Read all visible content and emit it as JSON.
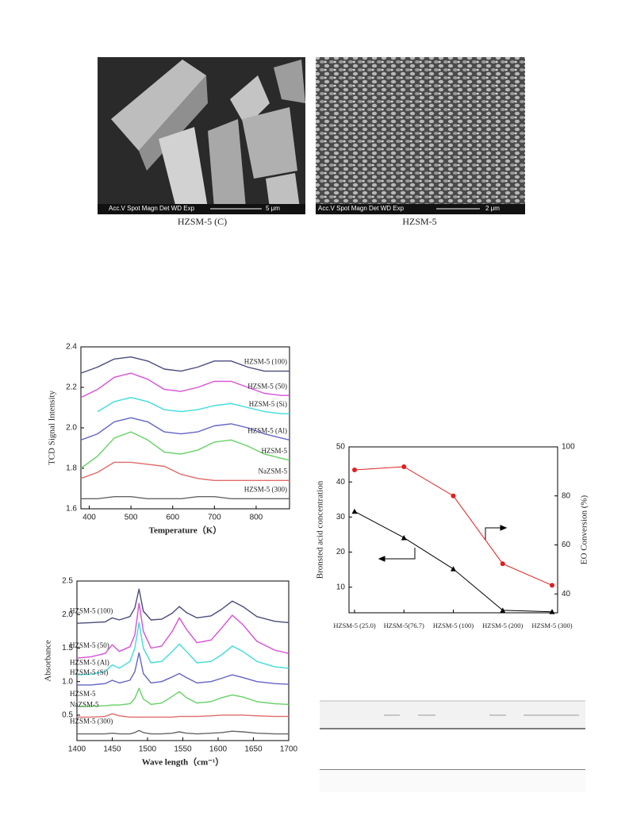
{
  "figures": [
    {
      "caption": "HZSM-5 (C)",
      "info": "Acc.V  Spot Magn   Det  WD  Exp",
      "scale": "5 μm"
    },
    {
      "caption": "HZSM-5",
      "info": "Acc.V  Spot Magn   Det  WD  Exp",
      "scale": "2 μm"
    }
  ],
  "chart_data": [
    {
      "type": "line",
      "xlabel": "Temperature（K）",
      "ylabel": "TCD Signal Intensity",
      "x": [
        380,
        420,
        460,
        500,
        540,
        580,
        620,
        660,
        700,
        740,
        780,
        820,
        860,
        880
      ],
      "xlim": [
        380,
        880
      ],
      "xticks": [
        400,
        500,
        600,
        700,
        800
      ],
      "ylim": [
        1.6,
        2.4
      ],
      "yticks": [
        1.6,
        1.8,
        {
          "value": 2,
          "label": "2.0"
        },
        2.2,
        2.4
      ],
      "series": [
        {
          "name": "HZSM-5 (100)",
          "color": "#4b4b7d",
          "values": [
            2.27,
            2.3,
            2.34,
            2.35,
            2.33,
            2.29,
            2.28,
            2.3,
            2.33,
            2.33,
            2.3,
            2.28,
            2.28,
            2.28
          ]
        },
        {
          "name": "HZSM-5 (50)",
          "color": "#d94fd9",
          "values": [
            2.15,
            2.19,
            2.25,
            2.27,
            2.24,
            2.19,
            2.18,
            2.2,
            2.23,
            2.23,
            2.2,
            2.17,
            2.16,
            2.16
          ]
        },
        {
          "name": "HZSM-5 (Si)",
          "color": "#3fdcdc",
          "values": [
            null,
            2.08,
            2.13,
            2.15,
            2.13,
            2.09,
            2.08,
            2.09,
            2.11,
            2.12,
            2.1,
            2.08,
            2.07,
            2.07
          ]
        },
        {
          "name": "HZSM-5 (Al)",
          "color": "#6464c8",
          "values": [
            1.94,
            1.97,
            2.03,
            2.05,
            2.03,
            1.98,
            1.97,
            1.98,
            2.01,
            2.02,
            2.0,
            1.97,
            1.95,
            1.94
          ]
        },
        {
          "name": "HZSM-5",
          "color": "#66d166",
          "values": [
            1.8,
            1.86,
            1.95,
            1.98,
            1.94,
            1.88,
            1.87,
            1.89,
            1.93,
            1.94,
            1.91,
            1.87,
            1.85,
            1.84
          ]
        },
        {
          "name": "NaZSM-5",
          "color": "#e06a6a",
          "values": [
            1.75,
            1.78,
            1.83,
            1.83,
            1.82,
            1.81,
            1.77,
            1.75,
            1.74,
            1.74,
            1.74,
            1.74,
            1.74,
            1.74
          ]
        },
        {
          "name": "HZSM-5 (300)",
          "color": "#666666",
          "values": [
            1.65,
            1.65,
            1.66,
            1.66,
            1.65,
            1.65,
            1.65,
            1.66,
            1.66,
            1.65,
            1.65,
            1.65,
            1.65,
            1.65
          ]
        }
      ]
    },
    {
      "type": "line",
      "xlabel": "Wave length（cm⁻¹）",
      "ylabel": "Absorbance",
      "x": [
        1400,
        1420,
        1440,
        1450,
        1460,
        1475,
        1482,
        1488,
        1494,
        1505,
        1520,
        1535,
        1545,
        1555,
        1570,
        1590,
        1605,
        1620,
        1635,
        1655,
        1680,
        1700
      ],
      "xlim": [
        1400,
        1700
      ],
      "xticks": [
        1400,
        1450,
        1500,
        1550,
        1600,
        1650,
        1700
      ],
      "ylim": [
        0.12,
        2.5
      ],
      "yticks": [
        0.5,
        {
          "value": 1,
          "label": "1.0"
        },
        1.5,
        {
          "value": 2,
          "label": "2.0"
        },
        2.5
      ],
      "series": [
        {
          "name": "HZSM-5 (100)",
          "color": "#4b4b7d",
          "values": [
            1.87,
            1.88,
            1.89,
            1.95,
            1.92,
            1.97,
            2.1,
            2.38,
            2.05,
            1.92,
            1.93,
            2.02,
            2.12,
            2.03,
            1.95,
            1.98,
            2.08,
            2.2,
            2.12,
            1.97,
            1.9,
            1.88
          ]
        },
        {
          "name": "HZSM-5 (50)",
          "color": "#d94fd9",
          "values": [
            1.35,
            1.37,
            1.42,
            1.55,
            1.45,
            1.52,
            1.7,
            2.17,
            1.75,
            1.5,
            1.53,
            1.75,
            1.95,
            1.78,
            1.58,
            1.62,
            1.8,
            1.99,
            1.85,
            1.6,
            1.47,
            1.42
          ]
        },
        {
          "name": "HZSM-5 (Al)",
          "color": "#3fdcdc",
          "values": [
            1.1,
            1.11,
            1.15,
            1.25,
            1.2,
            1.3,
            1.5,
            1.88,
            1.5,
            1.28,
            1.3,
            1.45,
            1.56,
            1.45,
            1.28,
            1.3,
            1.4,
            1.53,
            1.45,
            1.3,
            1.22,
            1.2
          ]
        },
        {
          "name": "HZSM-5 (Si)",
          "color": "#6464c8",
          "values": [
            0.95,
            0.95,
            0.97,
            1.02,
            0.98,
            1.02,
            1.15,
            1.43,
            1.12,
            0.98,
            1.0,
            1.07,
            1.12,
            1.06,
            0.98,
            1.0,
            1.05,
            1.1,
            1.06,
            1.0,
            0.97,
            0.96
          ]
        },
        {
          "name": "HZSM-5",
          "color": "#66d166",
          "values": [
            0.63,
            0.63,
            0.64,
            0.65,
            0.65,
            0.67,
            0.75,
            0.9,
            0.74,
            0.66,
            0.68,
            0.78,
            0.85,
            0.76,
            0.68,
            0.7,
            0.76,
            0.8,
            0.77,
            0.7,
            0.67,
            0.66
          ]
        },
        {
          "name": "NaZSM-5",
          "color": "#e06a6a",
          "values": [
            0.47,
            0.47,
            0.48,
            0.52,
            0.49,
            0.47,
            0.47,
            0.47,
            0.47,
            0.47,
            0.47,
            0.47,
            0.48,
            0.48,
            0.48,
            0.49,
            0.5,
            0.5,
            0.5,
            0.49,
            0.48,
            0.48
          ]
        },
        {
          "name": "HZSM-5 (300)",
          "color": "#666666",
          "values": [
            0.22,
            0.22,
            0.22,
            0.23,
            0.22,
            0.22,
            0.24,
            0.27,
            0.24,
            0.22,
            0.22,
            0.23,
            0.25,
            0.23,
            0.22,
            0.23,
            0.24,
            0.26,
            0.25,
            0.23,
            0.22,
            0.22
          ]
        }
      ]
    },
    {
      "type": "dual",
      "ylabel": "Bronsted acid concentration",
      "y2label": "EO Conversion (%)",
      "categories": [
        "HZSM-5 (25.0)",
        "HZSM-5(76.7)",
        "HZSM-5 (100)",
        "HZSM-5 (200)",
        "HZSM-5 (300)"
      ],
      "ylim": [
        2.7,
        50
      ],
      "yticks": [
        10,
        20,
        30,
        40,
        50
      ],
      "y2lim": [
        32.3,
        100
      ],
      "y2ticks": [
        40,
        60,
        80,
        100
      ],
      "series": [
        {
          "color": "#000000",
          "marker": "triangle",
          "values": [
            31.6,
            24.1,
            15.2,
            3.4,
            3
          ]
        },
        {
          "color": "#e02020",
          "marker": "circle",
          "axis": "y2",
          "values": [
            90.6,
            91.9,
            80,
            52.3,
            43.5
          ]
        }
      ]
    }
  ]
}
